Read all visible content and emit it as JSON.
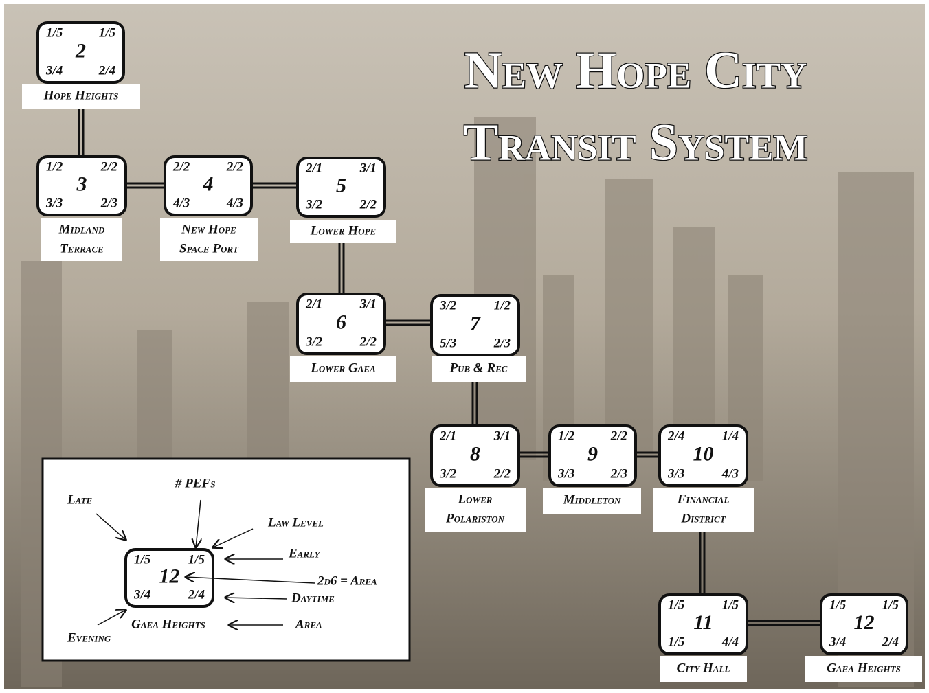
{
  "title": [
    "New Hope City",
    "Transit System"
  ],
  "nodes": [
    {
      "number": "2",
      "corners": [
        "1/5",
        "1/5",
        "3/4",
        "2/4"
      ],
      "name": [
        "Hope Heights"
      ]
    },
    {
      "number": "3",
      "corners": [
        "1/2",
        "2/2",
        "3/3",
        "2/3"
      ],
      "name": [
        "Midland",
        "Terrace"
      ]
    },
    {
      "number": "4",
      "corners": [
        "2/2",
        "2/2",
        "4/3",
        "4/3"
      ],
      "name": [
        "New Hope",
        "Space Port"
      ]
    },
    {
      "number": "5",
      "corners": [
        "2/1",
        "3/1",
        "3/2",
        "2/2"
      ],
      "name": [
        "Lower Hope"
      ]
    },
    {
      "number": "6",
      "corners": [
        "2/1",
        "3/1",
        "3/2",
        "2/2"
      ],
      "name": [
        "Lower Gaea"
      ]
    },
    {
      "number": "7",
      "corners": [
        "3/2",
        "1/2",
        "5/3",
        "2/3"
      ],
      "name": [
        "Pub & Rec"
      ]
    },
    {
      "number": "8",
      "corners": [
        "2/1",
        "3/1",
        "3/2",
        "2/2"
      ],
      "name": [
        "Lower",
        "Polariston"
      ]
    },
    {
      "number": "9",
      "corners": [
        "1/2",
        "2/2",
        "3/3",
        "2/3"
      ],
      "name": [
        "Middleton"
      ]
    },
    {
      "number": "10",
      "corners": [
        "2/4",
        "1/4",
        "3/3",
        "4/3"
      ],
      "name": [
        "Financial",
        "District"
      ]
    },
    {
      "number": "11",
      "corners": [
        "1/5",
        "1/5",
        "1/5",
        "4/4"
      ],
      "name": [
        "City Hall"
      ]
    },
    {
      "number": "12",
      "corners": [
        "1/5",
        "1/5",
        "3/4",
        "2/4"
      ],
      "name": [
        "Gaea Heights"
      ]
    }
  ],
  "legend": {
    "node": {
      "number": "12",
      "corners": [
        "1/5",
        "1/5",
        "3/4",
        "2/4"
      ],
      "name": [
        "Gaea Heights"
      ]
    },
    "labels": [
      "Late",
      "# PEFs",
      "Law Level",
      "Early",
      "2d6 = Area",
      "Daytime",
      "Area",
      "Evening"
    ]
  }
}
